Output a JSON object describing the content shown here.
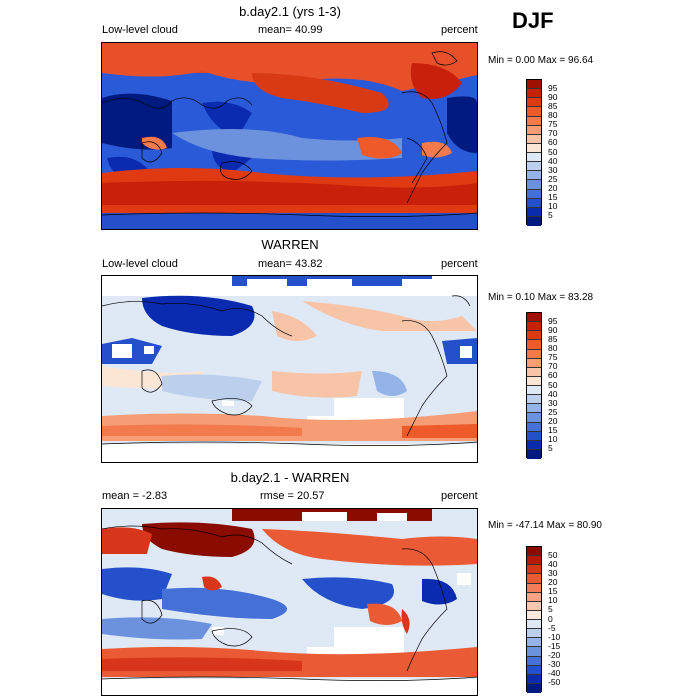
{
  "season": "DJF",
  "panels": [
    {
      "title": "b.day2.1 (yrs 1-3)",
      "left_label": "Low-level cloud",
      "mid_label": "mean=  40.99",
      "right_label": "percent",
      "minmax": "Min =    0.00 Max =  96.64",
      "colorbar": {
        "labels": [
          "95",
          "90",
          "85",
          "80",
          "75",
          "70",
          "60",
          "50",
          "40",
          "30",
          "25",
          "20",
          "15",
          "10",
          "5"
        ],
        "colors": [
          "#a01000",
          "#c8200a",
          "#e03a12",
          "#ee5a2a",
          "#f27a4c",
          "#f69d76",
          "#f8c4a8",
          "#fbe6d6",
          "#dfe9f6",
          "#bcd0ee",
          "#94b3e6",
          "#6c92de",
          "#4570d6",
          "#2450cc",
          "#0a2bb0",
          "#001a80"
        ]
      }
    },
    {
      "title": "WARREN",
      "left_label": "Low-level cloud",
      "mid_label": "mean=  43.82",
      "right_label": "percent",
      "minmax": "Min =    0.10 Max =  83.28",
      "colorbar": {
        "labels": [
          "95",
          "90",
          "85",
          "80",
          "75",
          "70",
          "60",
          "50",
          "40",
          "30",
          "25",
          "20",
          "15",
          "10",
          "5"
        ],
        "colors": [
          "#a01000",
          "#c8200a",
          "#e03a12",
          "#ee5a2a",
          "#f27a4c",
          "#f69d76",
          "#f8c4a8",
          "#fbe6d6",
          "#dfe9f6",
          "#bcd0ee",
          "#94b3e6",
          "#6c92de",
          "#4570d6",
          "#2450cc",
          "#0a2bb0",
          "#001a80"
        ]
      }
    },
    {
      "title": "b.day2.1 - WARREN",
      "left_label": "mean =  -2.83",
      "mid_label": "rmse =  20.57",
      "right_label": "percent",
      "minmax": "Min = -47.14 Max =  80.90",
      "colorbar": {
        "labels": [
          "50",
          "40",
          "30",
          "20",
          "15",
          "10",
          "5",
          "0",
          "-5",
          "-10",
          "-15",
          "-20",
          "-30",
          "-40",
          "-50"
        ],
        "colors": [
          "#8a0c00",
          "#b61a06",
          "#d8361a",
          "#ea5a34",
          "#f07e58",
          "#f5a384",
          "#f8c7b0",
          "#fbe9de",
          "#dfe9f6",
          "#bcd0ee",
          "#94b3e6",
          "#6c92de",
          "#4570d6",
          "#2450cc",
          "#0a2bb0",
          "#001a80"
        ]
      }
    }
  ]
}
